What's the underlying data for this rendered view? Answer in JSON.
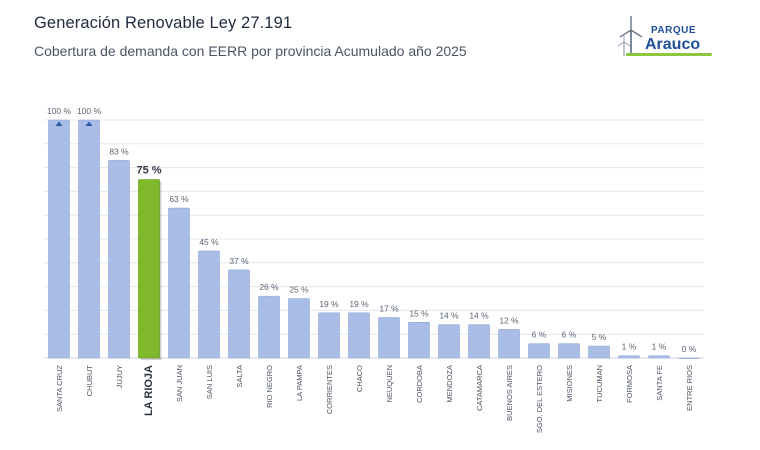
{
  "header": {
    "title": "Generación Renovable Ley 27.191",
    "subtitle": "Cobertura de demanda con EERR por provincia Acumulado año 2025"
  },
  "logo": {
    "line1": "PARQUE",
    "line2": "Arauco",
    "icon": "wind-turbine-icon",
    "color_text": "#1f4e9a",
    "color_accent": "#8cc63f"
  },
  "colors": {
    "bar": "#a9bde6",
    "bar_highlight": "#7fb82a",
    "grid": "#e3e8f0",
    "marker": "#2a5aa8"
  },
  "chart_data": {
    "type": "bar",
    "title": "",
    "xlabel": "",
    "ylabel": "",
    "ylim": [
      0,
      110
    ],
    "grid": true,
    "highlight": "LA RIOJA",
    "categories": [
      "SANTA CRUZ",
      "CHUBUT",
      "JUJUY",
      "LA RIOJA",
      "SAN JUAN",
      "SAN LUIS",
      "SALTA",
      "RIO NEGRO",
      "LA PAMPA",
      "CORRIENTES",
      "CHACO",
      "NEUQUEN",
      "CORDOBA",
      "MENDOZA",
      "CATAMARCA",
      "BUENOS AIRES",
      "SGO. DEL ESTERO",
      "MISIONES",
      "TUCUMAN",
      "FORMOSA",
      "SANTA FE",
      "ENTRE RIOS"
    ],
    "values": [
      100,
      100,
      83,
      75,
      63,
      45,
      37,
      26,
      25,
      19,
      19,
      17,
      15,
      14,
      14,
      12,
      6,
      6,
      5,
      1,
      1,
      0
    ],
    "value_labels": [
      "100 %",
      "100 %",
      "83 %",
      "75 %",
      "63 %",
      "45 %",
      "37 %",
      "26 %",
      "25 %",
      "19 %",
      "19 %",
      "17 %",
      "15 %",
      "14 %",
      "14 %",
      "12 %",
      "6 %",
      "6 %",
      "5 %",
      "1 %",
      "1 %",
      "0 %"
    ],
    "capped_markers": [
      "SANTA CRUZ",
      "CHUBUT"
    ]
  }
}
